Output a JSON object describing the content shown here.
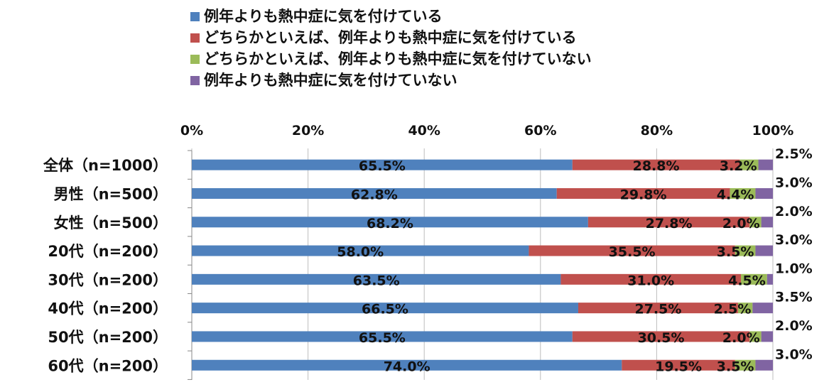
{
  "chart_data": {
    "type": "bar",
    "orientation": "horizontal",
    "stacked": true,
    "categories": [
      "全体（n=1000）",
      "男性（n=500）",
      "女性（n=500）",
      "20代（n=200）",
      "30代（n=200）",
      "40代（n=200）",
      "50代（n=200）",
      "60代（n=200）"
    ],
    "series": [
      {
        "name": "例年よりも熱中症に気を付けている",
        "color": "#4F81BD",
        "values": [
          65.5,
          62.8,
          68.2,
          58.0,
          63.5,
          66.5,
          65.5,
          74.0
        ],
        "labels": [
          "65.5%",
          "62.8%",
          "68.2%",
          "58.0%",
          "63.5%",
          "66.5%",
          "65.5%",
          "74.0%"
        ]
      },
      {
        "name": "どちらかといえば、例年よりも熱中症に気を付けている",
        "color": "#C0504D",
        "values": [
          28.8,
          29.8,
          27.8,
          35.5,
          31.0,
          27.5,
          30.5,
          19.5
        ],
        "labels": [
          "28.8%",
          "29.8%",
          "27.8%",
          "35.5%",
          "31.0%",
          "27.5%",
          "30.5%",
          "19.5%"
        ]
      },
      {
        "name": "どちらかといえば、例年よりも熱中症に気を付けていない",
        "color": "#9BBB59",
        "values": [
          3.2,
          4.4,
          2.0,
          3.5,
          4.5,
          2.5,
          2.0,
          3.5
        ],
        "labels": [
          "3.2%",
          "4.4%",
          "2.0%",
          "3.5%",
          "4.5%",
          "2.5%",
          "2.0%",
          "3.5%"
        ]
      },
      {
        "name": "例年よりも熱中症に気を付けていない",
        "color": "#8064A2",
        "values": [
          2.5,
          3.0,
          2.0,
          3.0,
          1.0,
          3.5,
          2.0,
          3.0
        ],
        "labels": [
          "2.5%",
          "3.0%",
          "2.0%",
          "3.0%",
          "1.0%",
          "3.5%",
          "2.0%",
          "3.0%"
        ]
      }
    ],
    "xlim": [
      0,
      100
    ],
    "x_ticks": [
      "0%",
      "20%",
      "40%",
      "60%",
      "80%",
      "100%"
    ],
    "x_tick_values": [
      0,
      20,
      40,
      60,
      80,
      100
    ],
    "x_axis_position": "top",
    "grid": true,
    "legend_position": "top-left"
  }
}
